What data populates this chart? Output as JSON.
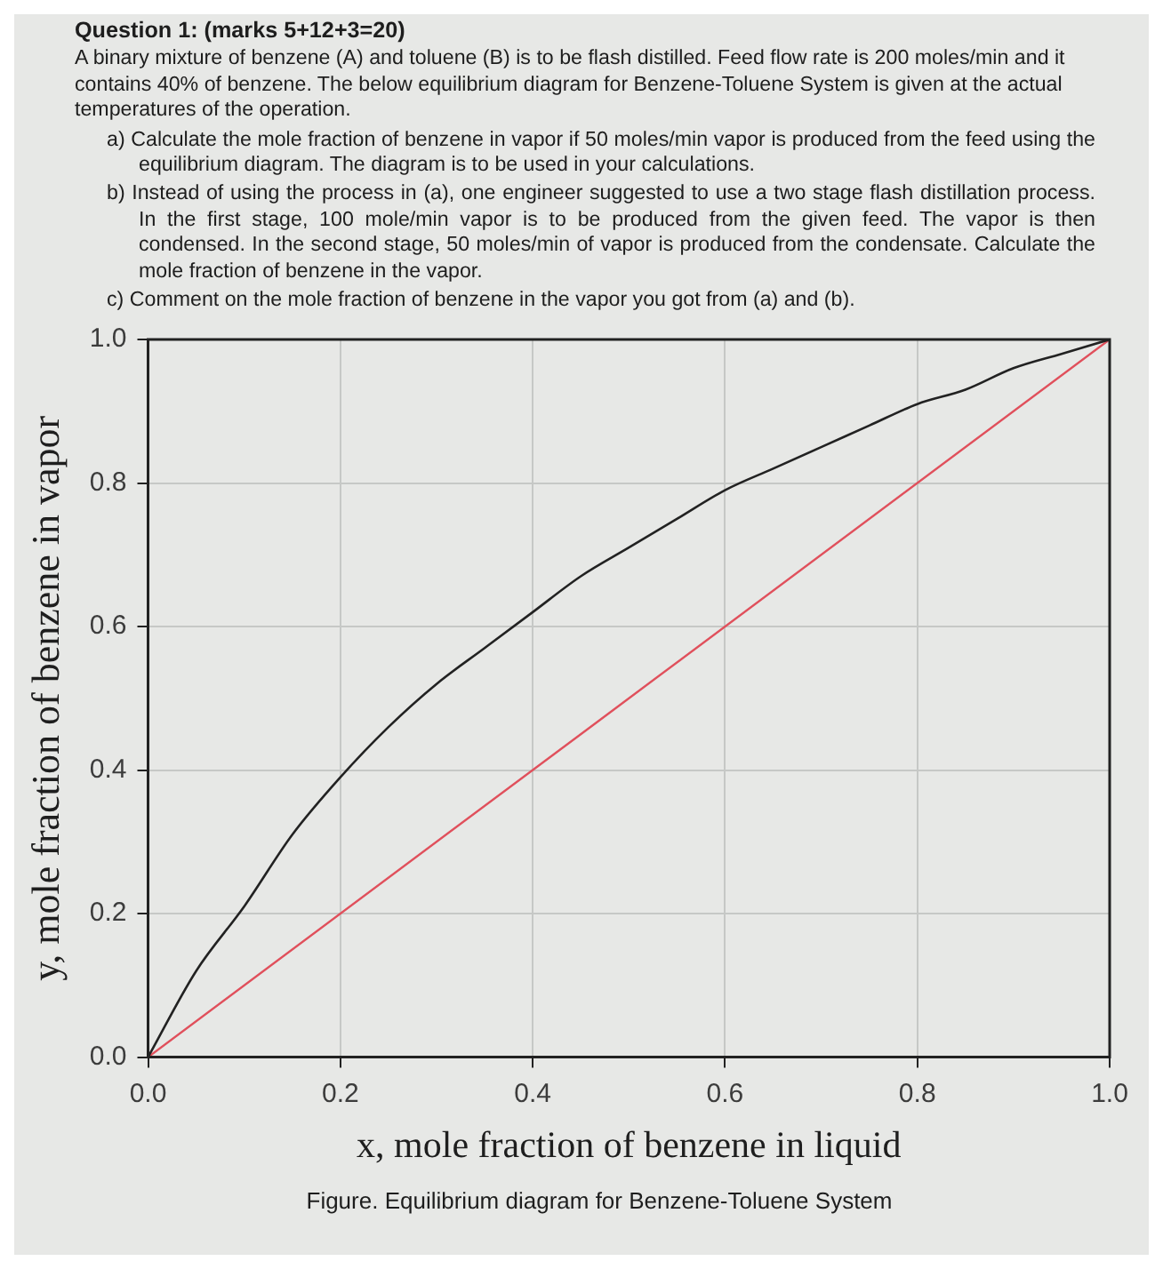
{
  "chart_data": {
    "type": "line",
    "title": "Question 1: (marks 5+12+3=20)",
    "subtitle": "A binary mixture of benzene (A) and toluene (B) is to be flash distilled. Feed flow rate is 200 moles/min and it contains 40% of benzene. The below equilibrium diagram for Benzene-Toluene System is given at the actual temperatures of the operation.",
    "annotations": [
      "a) Calculate the mole fraction of benzene in vapor if 50 moles/min vapor is produced from the feed using the equilibrium diagram. The diagram is to be used in your calculations.",
      "b) Instead of using the process in (a), one engineer suggested to use a two stage flash distillation process. In the first stage, 100 mole/min vapor is to be produced from the given feed. The vapor is then condensed. In the second stage, 50 moles/min of vapor is produced from the condensate. Calculate the mole fraction of benzene in the vapor.",
      "c) Comment on the mole fraction of benzene in the vapor you got from (a) and (b).",
      "Figure. Equilibrium diagram for Benzene-Toluene System"
    ],
    "xlabel": "x, mole fraction of benzene in liquid",
    "ylabel": "y, mole fraction of benzene in vapor",
    "series": [
      {
        "color": "#222222",
        "x": [
          0,
          0.05,
          0.1,
          0.15,
          0.2,
          0.25,
          0.3,
          0.35,
          0.4,
          0.45,
          0.5,
          0.55,
          0.6,
          0.65,
          0.7,
          0.75,
          0.8,
          0.85,
          0.9,
          0.95,
          1
        ],
        "values": [
          0,
          0.12,
          0.21,
          0.31,
          0.39,
          0.46,
          0.52,
          0.57,
          0.62,
          0.67,
          0.71,
          0.75,
          0.79,
          0.82,
          0.85,
          0.88,
          0.91,
          0.93,
          0.96,
          0.98,
          1
        ]
      },
      {
        "color": "#e0505c",
        "x": [
          0,
          1
        ],
        "values": [
          0,
          1
        ]
      }
    ],
    "xlim": [
      0,
      1
    ],
    "ylim": [
      0,
      1
    ],
    "xticks": [
      {
        "value": 0,
        "label": "0.0"
      },
      0.2,
      0.4,
      0.6,
      0.8,
      {
        "value": 1,
        "label": "1.0"
      }
    ],
    "yticks": [
      {
        "value": 0,
        "label": "0.0"
      },
      0.2,
      0.4,
      0.6,
      0.8,
      {
        "value": 1,
        "label": "1.0"
      }
    ],
    "grid": true,
    "marker": "none"
  }
}
